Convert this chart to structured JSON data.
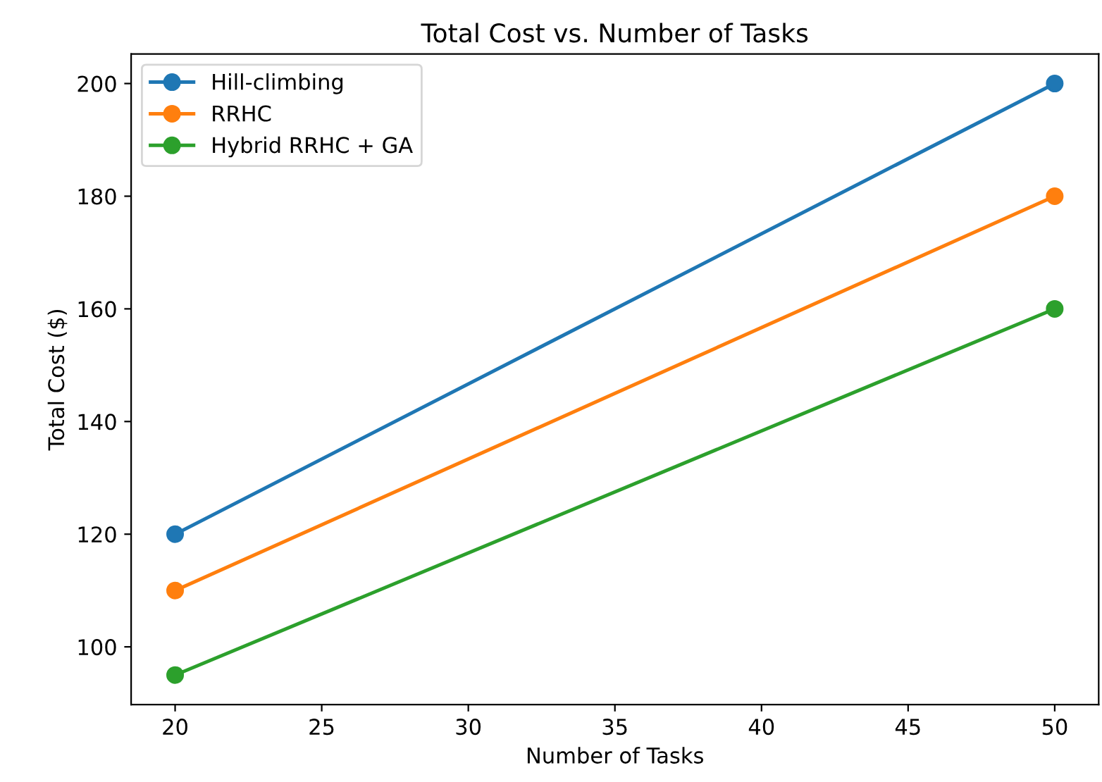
{
  "chart_data": {
    "type": "line",
    "title": "Total Cost vs. Number of Tasks",
    "xlabel": "Number of Tasks",
    "ylabel": "Total Cost ($)",
    "x": [
      20,
      50
    ],
    "series": [
      {
        "name": "Hill-climbing",
        "color": "#1f77b4",
        "values": [
          120,
          200
        ]
      },
      {
        "name": "RRHC",
        "color": "#ff7f0e",
        "values": [
          110,
          180
        ]
      },
      {
        "name": "Hybrid RRHC + GA",
        "color": "#2ca02c",
        "values": [
          95,
          160
        ]
      }
    ],
    "xlim": [
      18.5,
      51.5
    ],
    "xticks": [
      20,
      25,
      30,
      35,
      40,
      45,
      50
    ],
    "ylim": [
      89.75,
      205.25
    ],
    "yticks": [
      100,
      120,
      140,
      160,
      180,
      200
    ],
    "marker": "circle",
    "line_style": "solid",
    "legend": "top left",
    "grid": false
  }
}
